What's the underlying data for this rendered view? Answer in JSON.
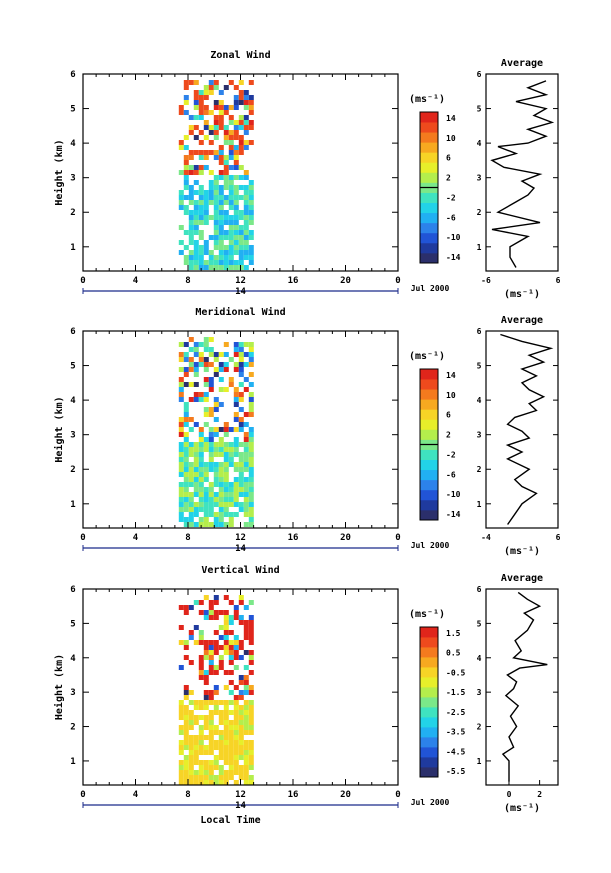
{
  "chart_data": [
    {
      "type": "heatmap",
      "title": "Zonal Wind",
      "ylabel": "Height (km)",
      "xlabel": "",
      "x_ticks": [
        "0",
        "4",
        "8",
        "12",
        "16",
        "20",
        "0"
      ],
      "y_ticks": [
        "1",
        "2",
        "3",
        "4",
        "5",
        "6"
      ],
      "xlim": [
        0,
        24
      ],
      "ylim": [
        0.3,
        6
      ],
      "date_bar_day": "14",
      "date_bar_month": "Jul 2000",
      "data_x_range": [
        7.3,
        13.0
      ],
      "colorbar_unit": "(ms⁻¹)",
      "colorbar_ticks": [
        "14",
        "10",
        "6",
        "2",
        "-2",
        "-6",
        "-10",
        "-14"
      ],
      "colorbar_range": [
        -16,
        16
      ],
      "average_profile": {
        "title": "Average",
        "xlabel": "(ms⁻¹)",
        "x_ticks": [
          "-6",
          "6"
        ],
        "xlim": [
          -6,
          6
        ],
        "y_ticks": [
          "1",
          "2",
          "3",
          "4",
          "5",
          "6"
        ],
        "heights": [
          0.4,
          0.7,
          1.0,
          1.3,
          1.5,
          1.7,
          2.0,
          2.3,
          2.5,
          2.7,
          2.9,
          3.1,
          3.3,
          3.5,
          3.7,
          3.9,
          4.0,
          4.2,
          4.4,
          4.6,
          4.8,
          5.0,
          5.2,
          5.4,
          5.6,
          5.8
        ],
        "values": [
          -1,
          -2,
          -2,
          1,
          -5,
          3,
          -4,
          -1,
          1,
          2,
          0,
          3,
          -3,
          -5,
          -1,
          -4,
          1,
          4,
          1,
          5,
          2,
          4,
          -1,
          4,
          1,
          4
        ]
      }
    },
    {
      "type": "heatmap",
      "title": "Meridional Wind",
      "ylabel": "Height (km)",
      "xlabel": "",
      "x_ticks": [
        "0",
        "4",
        "8",
        "12",
        "16",
        "20",
        "0"
      ],
      "y_ticks": [
        "1",
        "2",
        "3",
        "4",
        "5",
        "6"
      ],
      "xlim": [
        0,
        24
      ],
      "ylim": [
        0.3,
        6
      ],
      "date_bar_day": "14",
      "date_bar_month": "Jul 2000",
      "data_x_range": [
        7.3,
        13.0
      ],
      "colorbar_unit": "(ms⁻¹)",
      "colorbar_ticks": [
        "14",
        "10",
        "6",
        "2",
        "-2",
        "-6",
        "-10",
        "-14"
      ],
      "colorbar_range": [
        -16,
        16
      ],
      "average_profile": {
        "title": "Average",
        "xlabel": "(ms⁻¹)",
        "x_ticks": [
          "-4",
          "6"
        ],
        "xlim": [
          -4,
          6
        ],
        "y_ticks": [
          "1",
          "2",
          "3",
          "4",
          "5",
          "6"
        ],
        "heights": [
          0.4,
          0.7,
          1.0,
          1.3,
          1.5,
          1.7,
          2.0,
          2.3,
          2.5,
          2.7,
          2.9,
          3.1,
          3.3,
          3.5,
          3.7,
          3.9,
          4.1,
          4.3,
          4.5,
          4.7,
          4.9,
          5.1,
          5.3,
          5.5,
          5.7,
          5.9
        ],
        "values": [
          -1,
          0,
          1,
          3,
          1,
          0,
          2,
          -1,
          1,
          -1,
          2,
          1,
          -1,
          0,
          3,
          2,
          4,
          2,
          1,
          3,
          1,
          4,
          2,
          5,
          1,
          -2
        ]
      }
    },
    {
      "type": "heatmap",
      "title": "Vertical Wind",
      "ylabel": "Height (km)",
      "xlabel": "Local Time",
      "x_ticks": [
        "0",
        "4",
        "8",
        "12",
        "16",
        "20",
        "0"
      ],
      "y_ticks": [
        "1",
        "2",
        "3",
        "4",
        "5",
        "6"
      ],
      "xlim": [
        0,
        24
      ],
      "ylim": [
        0.3,
        6
      ],
      "date_bar_day": "14",
      "date_bar_month": "Jul 2000",
      "data_x_range": [
        7.3,
        13.0
      ],
      "colorbar_unit": "(ms⁻¹)",
      "colorbar_ticks": [
        "1.5",
        "0.5",
        "-0.5",
        "-1.5",
        "-2.5",
        "-3.5",
        "-4.5",
        "-5.5"
      ],
      "colorbar_range": [
        -6,
        2
      ],
      "average_profile": {
        "title": "Average",
        "xlabel": "(ms⁻¹)",
        "x_ticks": [
          "0",
          "2"
        ],
        "xlim": [
          -1.5,
          3.2
        ],
        "y_ticks": [
          "1",
          "2",
          "3",
          "4",
          "5",
          "6"
        ],
        "heights": [
          0.4,
          0.7,
          1.0,
          1.2,
          1.4,
          1.7,
          2.0,
          2.3,
          2.6,
          2.9,
          3.1,
          3.3,
          3.5,
          3.7,
          3.8,
          4.0,
          4.2,
          4.5,
          4.8,
          5.1,
          5.3,
          5.5,
          5.7,
          5.9
        ],
        "values": [
          0,
          0,
          0,
          -0.4,
          0.3,
          0,
          0.5,
          0.1,
          0.6,
          -0.2,
          0.3,
          0.5,
          -0.1,
          0.7,
          2.5,
          0.3,
          0.8,
          0.4,
          1.2,
          1.6,
          1.0,
          2.0,
          1.2,
          0.6
        ]
      }
    }
  ]
}
